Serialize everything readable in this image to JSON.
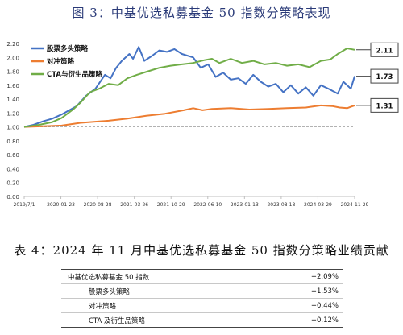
{
  "figure_title": "图 3：中基优选私募基金 50 指数分策略表现",
  "table_title": "表 4：2024 年 11 月中基优选私募基金 50 指数分策略业绩贡献",
  "table": {
    "rows": [
      {
        "name": "中基优选私募基金 50 指数",
        "value": "+2.09%"
      },
      {
        "name": "股票多头策略",
        "value": "+1.53%"
      },
      {
        "name": "对冲策略",
        "value": "+0.44%"
      },
      {
        "name": "CTA 及衍生品策略",
        "value": "+0.12%"
      }
    ]
  },
  "chart_data": {
    "type": "line",
    "title": "",
    "xlabel": "",
    "ylabel": "",
    "ylim": [
      0.0,
      2.2
    ],
    "yticks": [
      "0.00",
      "0.20",
      "0.40",
      "0.60",
      "0.80",
      "1.00",
      "1.20",
      "1.40",
      "1.60",
      "1.80",
      "2.00",
      "2.20"
    ],
    "xticks": [
      "2019/7/1",
      "2020-01-23",
      "2020-08-28",
      "2021-03-26",
      "2021-10-29",
      "2022-06-10",
      "2023-01-13",
      "2023-08-18",
      "2024-03-29",
      "2024-11-29"
    ],
    "grid": false,
    "reference_line": 1.0,
    "legend_position": "top-left",
    "series": [
      {
        "name": "股票多头策略",
        "color": "#4472c4",
        "end_label": "1.73",
        "values": [
          [
            0,
            1.0
          ],
          [
            5,
            1.03
          ],
          [
            10,
            1.08
          ],
          [
            15,
            1.12
          ],
          [
            20,
            1.18
          ],
          [
            28,
            1.3
          ],
          [
            33,
            1.45
          ],
          [
            38,
            1.55
          ],
          [
            43,
            1.75
          ],
          [
            46,
            1.7
          ],
          [
            49,
            1.85
          ],
          [
            52,
            1.95
          ],
          [
            56,
            2.05
          ],
          [
            58,
            1.98
          ],
          [
            61,
            2.15
          ],
          [
            64,
            1.95
          ],
          [
            68,
            2.02
          ],
          [
            72,
            2.1
          ],
          [
            76,
            2.08
          ],
          [
            80,
            2.12
          ],
          [
            84,
            2.05
          ],
          [
            90,
            2.0
          ],
          [
            94,
            1.85
          ],
          [
            98,
            1.9
          ],
          [
            102,
            1.72
          ],
          [
            106,
            1.78
          ],
          [
            110,
            1.68
          ],
          [
            114,
            1.7
          ],
          [
            118,
            1.62
          ],
          [
            122,
            1.75
          ],
          [
            126,
            1.65
          ],
          [
            130,
            1.58
          ],
          [
            134,
            1.62
          ],
          [
            138,
            1.5
          ],
          [
            142,
            1.6
          ],
          [
            146,
            1.48
          ],
          [
            150,
            1.57
          ],
          [
            154,
            1.45
          ],
          [
            158,
            1.6
          ],
          [
            162,
            1.55
          ],
          [
            167,
            1.48
          ],
          [
            170,
            1.65
          ],
          [
            174,
            1.55
          ],
          [
            176,
            1.73
          ]
        ]
      },
      {
        "name": "对冲策略",
        "color": "#ed7d31",
        "end_label": "1.31",
        "values": [
          [
            0,
            1.0
          ],
          [
            10,
            1.01
          ],
          [
            20,
            1.02
          ],
          [
            30,
            1.06
          ],
          [
            35,
            1.07
          ],
          [
            45,
            1.09
          ],
          [
            55,
            1.12
          ],
          [
            65,
            1.16
          ],
          [
            75,
            1.19
          ],
          [
            85,
            1.24
          ],
          [
            90,
            1.27
          ],
          [
            95,
            1.24
          ],
          [
            100,
            1.26
          ],
          [
            110,
            1.27
          ],
          [
            120,
            1.25
          ],
          [
            130,
            1.26
          ],
          [
            140,
            1.27
          ],
          [
            150,
            1.28
          ],
          [
            158,
            1.31
          ],
          [
            164,
            1.3
          ],
          [
            168,
            1.28
          ],
          [
            172,
            1.27
          ],
          [
            174,
            1.29
          ],
          [
            176,
            1.31
          ]
        ]
      },
      {
        "name": "CTA与衍生品策略",
        "color": "#70ad47",
        "end_label": "2.11",
        "values": [
          [
            0,
            1.0
          ],
          [
            8,
            1.03
          ],
          [
            15,
            1.07
          ],
          [
            20,
            1.13
          ],
          [
            26,
            1.25
          ],
          [
            30,
            1.35
          ],
          [
            35,
            1.5
          ],
          [
            40,
            1.55
          ],
          [
            45,
            1.62
          ],
          [
            50,
            1.6
          ],
          [
            55,
            1.7
          ],
          [
            60,
            1.75
          ],
          [
            66,
            1.8
          ],
          [
            72,
            1.85
          ],
          [
            78,
            1.88
          ],
          [
            84,
            1.9
          ],
          [
            90,
            1.92
          ],
          [
            96,
            1.96
          ],
          [
            100,
            1.98
          ],
          [
            104,
            1.92
          ],
          [
            110,
            1.98
          ],
          [
            116,
            1.92
          ],
          [
            122,
            1.95
          ],
          [
            128,
            1.9
          ],
          [
            134,
            1.92
          ],
          [
            140,
            1.88
          ],
          [
            146,
            1.9
          ],
          [
            152,
            1.86
          ],
          [
            158,
            1.95
          ],
          [
            163,
            1.97
          ],
          [
            167,
            2.05
          ],
          [
            172,
            2.13
          ],
          [
            176,
            2.11
          ]
        ]
      }
    ]
  }
}
